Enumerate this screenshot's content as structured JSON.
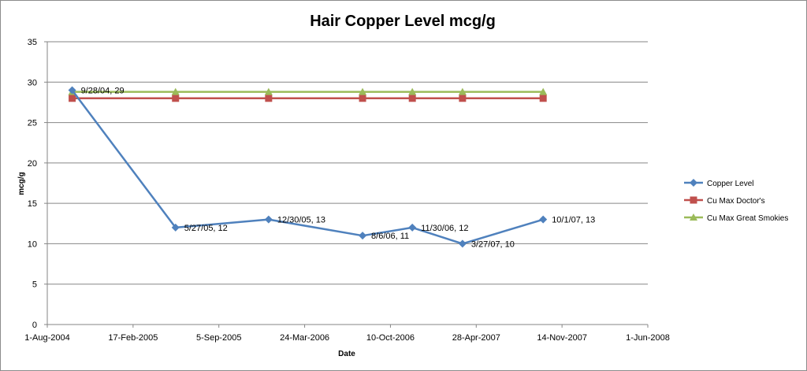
{
  "chart_data": {
    "type": "line",
    "title": "Hair Copper Level mcg/g",
    "xlabel": "Date",
    "ylabel": "mcg/g",
    "ylim": [
      0,
      35
    ],
    "yticks": [
      "0",
      "5",
      "10",
      "15",
      "20",
      "25",
      "30",
      "35"
    ],
    "xticks": [
      "1-Aug-2004",
      "17-Feb-2005",
      "5-Sep-2005",
      "24-Mar-2006",
      "10-Oct-2006",
      "28-Apr-2007",
      "14-Nov-2007",
      "1-Jun-2008"
    ],
    "xlim": [
      "2004-08-01",
      "2008-06-01"
    ],
    "grid": "horizontal",
    "legend_position": "right",
    "series": [
      {
        "name": "Copper Level",
        "color": "#4F81BD",
        "marker": "diamond",
        "points": [
          {
            "x": "2004-09-28",
            "y": 29,
            "label": "9/28/04, 29"
          },
          {
            "x": "2005-05-27",
            "y": 12,
            "label": "5/27/05, 12"
          },
          {
            "x": "2005-12-30",
            "y": 13,
            "label": "12/30/05, 13"
          },
          {
            "x": "2006-08-06",
            "y": 11,
            "label": "8/6/06, 11"
          },
          {
            "x": "2006-11-30",
            "y": 12,
            "label": "11/30/06, 12"
          },
          {
            "x": "2007-03-27",
            "y": 10,
            "label": "3/27/07, 10"
          },
          {
            "x": "2007-10-01",
            "y": 13,
            "label": "10/1/07, 13"
          }
        ]
      },
      {
        "name": "Cu Max Doctor's",
        "color": "#C0504D",
        "marker": "square",
        "points": [
          {
            "x": "2004-09-28",
            "y": 28
          },
          {
            "x": "2005-05-27",
            "y": 28
          },
          {
            "x": "2005-12-30",
            "y": 28
          },
          {
            "x": "2006-08-06",
            "y": 28
          },
          {
            "x": "2006-11-30",
            "y": 28
          },
          {
            "x": "2007-03-27",
            "y": 28
          },
          {
            "x": "2007-10-01",
            "y": 28
          }
        ]
      },
      {
        "name": "Cu Max Great Smokies",
        "color": "#9BBB59",
        "marker": "triangle",
        "points": [
          {
            "x": "2004-09-28",
            "y": 28.8
          },
          {
            "x": "2005-05-27",
            "y": 28.8
          },
          {
            "x": "2005-12-30",
            "y": 28.8
          },
          {
            "x": "2006-08-06",
            "y": 28.8
          },
          {
            "x": "2006-11-30",
            "y": 28.8
          },
          {
            "x": "2007-03-27",
            "y": 28.8
          },
          {
            "x": "2007-10-01",
            "y": 28.8
          }
        ]
      }
    ]
  }
}
